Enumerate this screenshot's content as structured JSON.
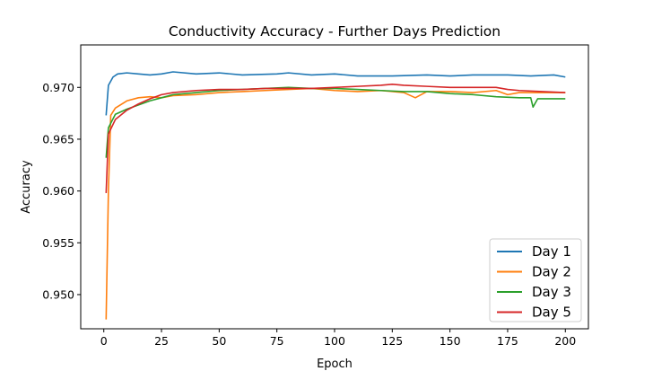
{
  "chart_data": {
    "type": "line",
    "title": "Conductivity Accuracy - Further Days Prediction",
    "xlabel": "Epoch",
    "ylabel": "Accuracy",
    "xlim": [
      -10,
      210
    ],
    "ylim": [
      0.9467,
      0.9741
    ],
    "xticks": [
      0,
      25,
      50,
      75,
      100,
      125,
      150,
      175,
      200
    ],
    "yticks": [
      0.95,
      0.955,
      0.96,
      0.965,
      0.97
    ],
    "ytick_labels": [
      "0.950",
      "0.955",
      "0.960",
      "0.965",
      "0.970"
    ],
    "grid": false,
    "legend_position": "lower-right",
    "series": [
      {
        "name": "Day 1",
        "color": "#1f77b4",
        "points": [
          [
            1,
            0.9673
          ],
          [
            2,
            0.9702
          ],
          [
            4,
            0.971
          ],
          [
            6,
            0.9713
          ],
          [
            10,
            0.9714
          ],
          [
            15,
            0.9713
          ],
          [
            20,
            0.9712
          ],
          [
            25,
            0.9713
          ],
          [
            30,
            0.9715
          ],
          [
            40,
            0.9713
          ],
          [
            50,
            0.9714
          ],
          [
            60,
            0.9712
          ],
          [
            75,
            0.9713
          ],
          [
            80,
            0.9714
          ],
          [
            90,
            0.9712
          ],
          [
            100,
            0.9713
          ],
          [
            110,
            0.9711
          ],
          [
            125,
            0.9711
          ],
          [
            140,
            0.9712
          ],
          [
            150,
            0.9711
          ],
          [
            160,
            0.9712
          ],
          [
            175,
            0.9712
          ],
          [
            185,
            0.9711
          ],
          [
            195,
            0.9712
          ],
          [
            200,
            0.971
          ]
        ]
      },
      {
        "name": "Day 2",
        "color": "#ff7f0e",
        "points": [
          [
            1,
            0.9476
          ],
          [
            2,
            0.96
          ],
          [
            3,
            0.9673
          ],
          [
            5,
            0.968
          ],
          [
            10,
            0.9687
          ],
          [
            15,
            0.969
          ],
          [
            20,
            0.9691
          ],
          [
            25,
            0.969
          ],
          [
            30,
            0.9692
          ],
          [
            40,
            0.9693
          ],
          [
            50,
            0.9695
          ],
          [
            60,
            0.9696
          ],
          [
            70,
            0.9697
          ],
          [
            80,
            0.9698
          ],
          [
            90,
            0.9699
          ],
          [
            100,
            0.9697
          ],
          [
            110,
            0.9696
          ],
          [
            120,
            0.9697
          ],
          [
            130,
            0.9695
          ],
          [
            135,
            0.969
          ],
          [
            140,
            0.9696
          ],
          [
            150,
            0.9696
          ],
          [
            160,
            0.9695
          ],
          [
            170,
            0.9697
          ],
          [
            175,
            0.9693
          ],
          [
            180,
            0.9695
          ],
          [
            190,
            0.9695
          ],
          [
            200,
            0.9695
          ]
        ]
      },
      {
        "name": "Day 3",
        "color": "#2ca02c",
        "points": [
          [
            1,
            0.9632
          ],
          [
            2,
            0.9661
          ],
          [
            5,
            0.9674
          ],
          [
            10,
            0.9679
          ],
          [
            15,
            0.9683
          ],
          [
            20,
            0.9687
          ],
          [
            25,
            0.969
          ],
          [
            30,
            0.9693
          ],
          [
            40,
            0.9695
          ],
          [
            50,
            0.9697
          ],
          [
            60,
            0.9698
          ],
          [
            70,
            0.9699
          ],
          [
            80,
            0.97
          ],
          [
            90,
            0.9699
          ],
          [
            100,
            0.9699
          ],
          [
            110,
            0.9698
          ],
          [
            120,
            0.9697
          ],
          [
            130,
            0.9696
          ],
          [
            140,
            0.9696
          ],
          [
            150,
            0.9694
          ],
          [
            160,
            0.9693
          ],
          [
            170,
            0.9691
          ],
          [
            180,
            0.969
          ],
          [
            185,
            0.969
          ],
          [
            186,
            0.9681
          ],
          [
            188,
            0.9689
          ],
          [
            195,
            0.9689
          ],
          [
            200,
            0.9689
          ]
        ]
      },
      {
        "name": "Day 5",
        "color": "#d62728",
        "points": [
          [
            1,
            0.9598
          ],
          [
            2,
            0.9655
          ],
          [
            5,
            0.9669
          ],
          [
            10,
            0.9678
          ],
          [
            15,
            0.9684
          ],
          [
            20,
            0.9689
          ],
          [
            25,
            0.9693
          ],
          [
            30,
            0.9695
          ],
          [
            40,
            0.9697
          ],
          [
            50,
            0.9698
          ],
          [
            60,
            0.9698
          ],
          [
            70,
            0.9699
          ],
          [
            80,
            0.9699
          ],
          [
            90,
            0.9699
          ],
          [
            100,
            0.97
          ],
          [
            110,
            0.9701
          ],
          [
            120,
            0.9702
          ],
          [
            125,
            0.9703
          ],
          [
            130,
            0.9702
          ],
          [
            140,
            0.9701
          ],
          [
            150,
            0.97
          ],
          [
            160,
            0.97
          ],
          [
            170,
            0.97
          ],
          [
            175,
            0.9698
          ],
          [
            180,
            0.9697
          ],
          [
            190,
            0.9696
          ],
          [
            200,
            0.9695
          ]
        ]
      }
    ]
  }
}
